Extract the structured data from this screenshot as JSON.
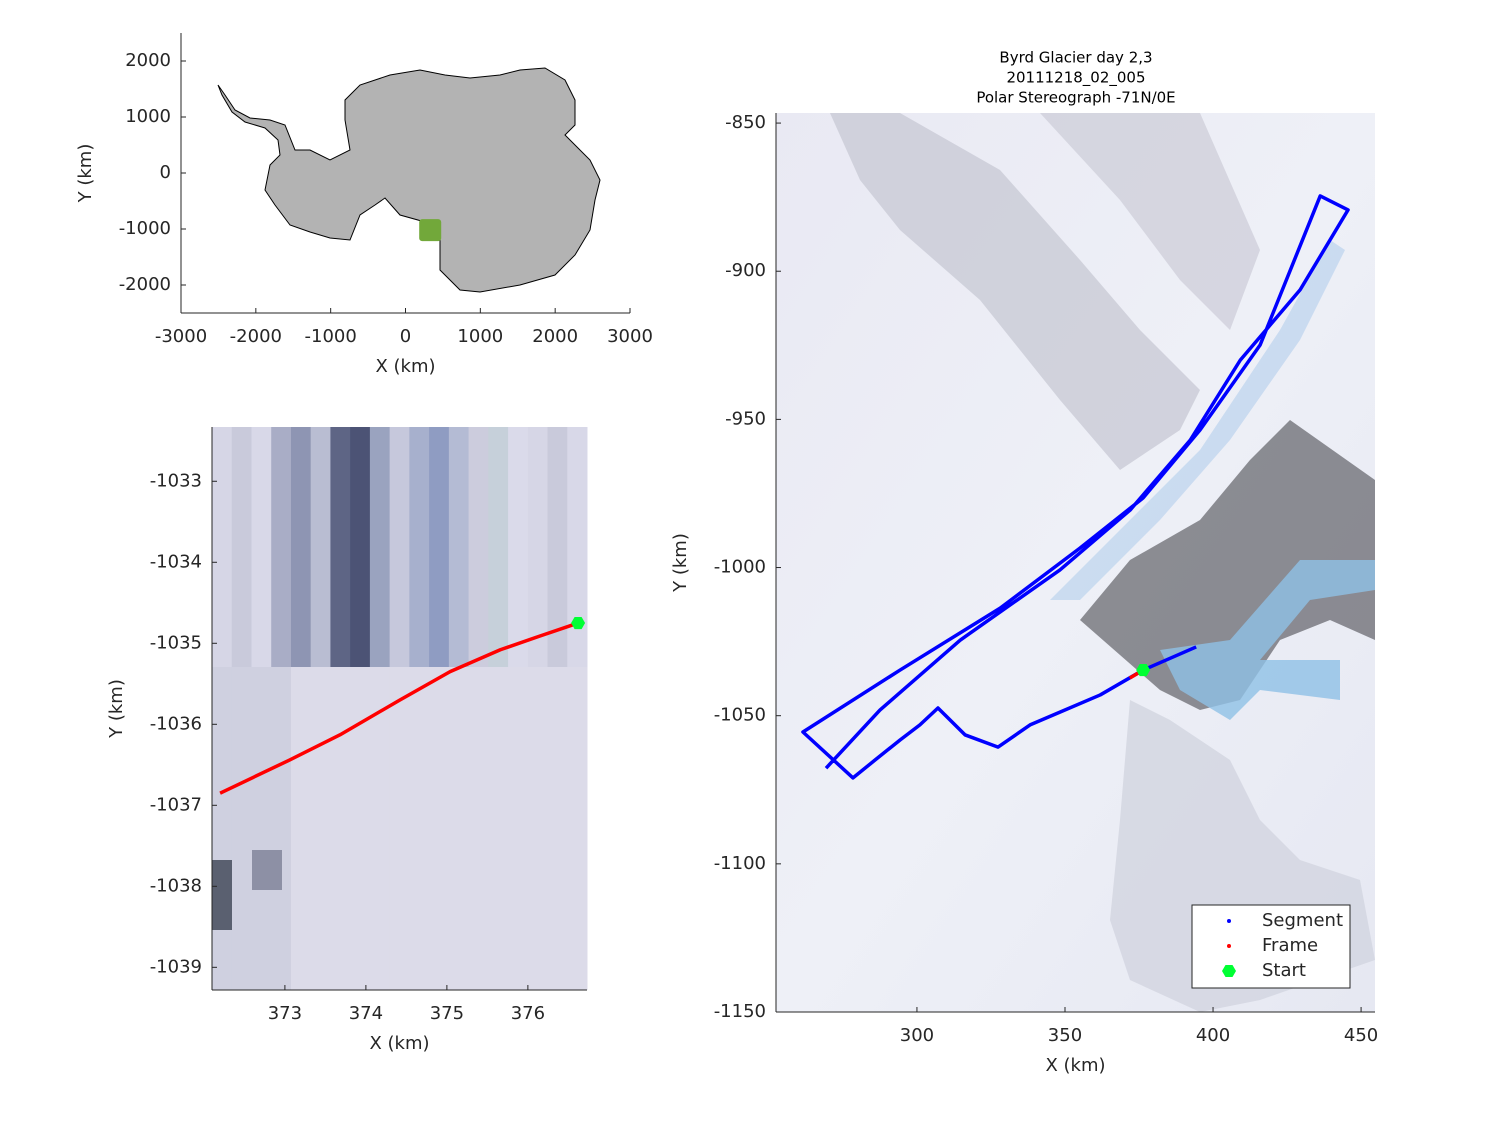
{
  "chart_data": [
    {
      "type": "map",
      "xlabel": "X (km)",
      "ylabel": "Y (km)",
      "xlim": [
        -3000,
        3000
      ],
      "xticks": [
        -3000,
        -2000,
        -1000,
        0,
        1000,
        2000,
        3000
      ],
      "ylim": [
        -2500,
        2500
      ],
      "yticks": [
        -2000,
        -1000,
        0,
        1000,
        2000
      ],
      "land_color": "#b3b3b3",
      "series": [
        {
          "color": "#72a83a",
          "marker": "square",
          "x": [
            330
          ],
          "values": [
            -1020
          ]
        }
      ]
    },
    {
      "type": "line",
      "xlabel": "X (km)",
      "ylabel": "Y (km)",
      "xlim": [
        372.1,
        376.73
      ],
      "xticks": [
        373,
        374,
        375,
        376
      ],
      "ylim": [
        -1039.28,
        -1032.33
      ],
      "yticks": [
        -1039,
        -1038,
        -1037,
        -1036,
        -1035,
        -1034,
        -1033
      ],
      "series": [
        {
          "color": "#ff0000",
          "marker": "point",
          "x": [
            372.2,
            373.06,
            373.68,
            374.42,
            375.04,
            375.66,
            376.15,
            376.62
          ],
          "values": [
            -1036.85,
            -1036.44,
            -1036.13,
            -1035.7,
            -1035.35,
            -1035.08,
            -1034.91,
            -1034.75
          ]
        },
        {
          "color": "#00ff33",
          "marker": "hexagon",
          "x": [
            376.62
          ],
          "values": [
            -1034.75
          ]
        }
      ]
    },
    {
      "type": "line",
      "title": [
        "Byrd Glacier day 2,3",
        "20111218_02_005",
        "Polar Stereograph -71N/0E"
      ],
      "xlabel": "X (km)",
      "ylabel": "Y (km)",
      "xlim": [
        252.4,
        454.7
      ],
      "xticks": [
        300,
        350,
        400,
        450
      ],
      "ylim": [
        -1150,
        -846.6
      ],
      "yticks": [
        -1150,
        -1100,
        -1050,
        -1000,
        -950,
        -900,
        -850
      ],
      "legend": "southeast",
      "series": [
        {
          "name": "Segment",
          "color": "#0000ff",
          "marker": "point",
          "x": [
            394.3,
            376.4,
            361.9,
            348.3,
            338.2,
            327.4,
            316.3,
            307.1,
            301.0,
            294.3,
            285.8,
            278.4,
            261.5,
            294.3,
            328.1,
            355.1,
            376.4,
            395.6,
            415.9,
            436.2,
            445.6,
            429.4,
            409.2,
            392.3,
            372.0,
            348.3,
            314.6,
            287.5,
            269.3
          ],
          "values": [
            -1026.8,
            -1034.6,
            -1043.0,
            -1048.8,
            -1053.1,
            -1060.6,
            -1056.5,
            -1047.4,
            -1053.1,
            -1058.2,
            -1065.0,
            -1071.0,
            -1055.5,
            -1034.6,
            -1013.7,
            -993.4,
            -976.5,
            -953.6,
            -924.9,
            -874.6,
            -879.3,
            -906.3,
            -930.0,
            -957.0,
            -980.6,
            -1000.8,
            -1024.5,
            -1048.1,
            -1067.7
          ]
        },
        {
          "name": "Frame",
          "color": "#ff0000",
          "marker": "point",
          "x": [
            371.9,
            376.4
          ],
          "values": [
            -1037.3,
            -1034.6
          ]
        },
        {
          "name": "Start",
          "color": "#00ff33",
          "marker": "hexagon",
          "x": [
            376.4
          ],
          "values": [
            -1034.6
          ]
        }
      ]
    }
  ]
}
